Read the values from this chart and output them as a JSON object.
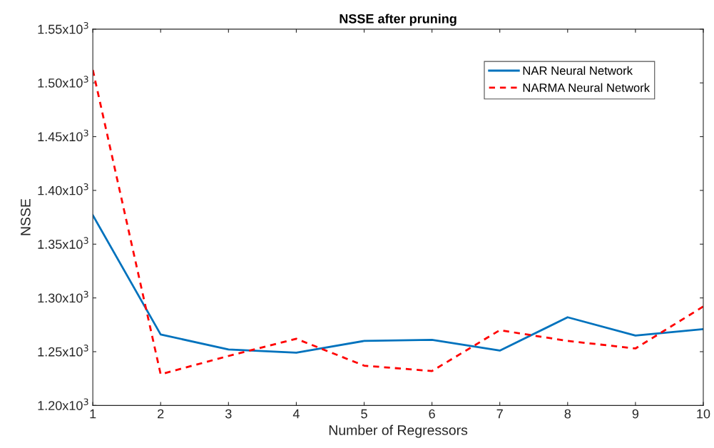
{
  "chart_data": {
    "type": "line",
    "title": "NSSE after pruning",
    "xlabel": "Number of Regressors",
    "ylabel": "NSSE",
    "x": [
      1,
      2,
      3,
      4,
      5,
      6,
      7,
      8,
      9,
      10
    ],
    "series": [
      {
        "name": "NAR Neural Network",
        "color": "#0072bd",
        "line_style": "solid",
        "values": [
          1377,
          1266,
          1252,
          1249,
          1260,
          1261,
          1251,
          1282,
          1265,
          1271
        ]
      },
      {
        "name": "NARMA Neural Network",
        "color": "#ff0000",
        "line_style": "dashed",
        "values": [
          1512,
          1229,
          1246,
          1262,
          1237,
          1232,
          1270,
          1260,
          1253,
          1292
        ]
      }
    ],
    "xlim": [
      1,
      10
    ],
    "xticks": [
      1,
      2,
      3,
      4,
      5,
      6,
      7,
      8,
      9,
      10
    ],
    "ylim": [
      1200,
      1550
    ],
    "yticks": [
      {
        "value": 1200,
        "label": "1.20x10$^{3}$"
      },
      {
        "value": 1250,
        "label": "1.25x10$^{3}$"
      },
      {
        "value": 1300,
        "label": "1.30x10$^{3}$"
      },
      {
        "value": 1350,
        "label": "1.35x10$^{3}$"
      },
      {
        "value": 1400,
        "label": "1.40x10$^{3}$"
      },
      {
        "value": 1450,
        "label": "1.45x10$^{3}$"
      },
      {
        "value": 1500,
        "label": "1.50x10$^{3}$"
      },
      {
        "value": 1550,
        "label": "1.55x10$^{3}$"
      }
    ],
    "grid": false,
    "legend": "top right",
    "marker": "none"
  }
}
